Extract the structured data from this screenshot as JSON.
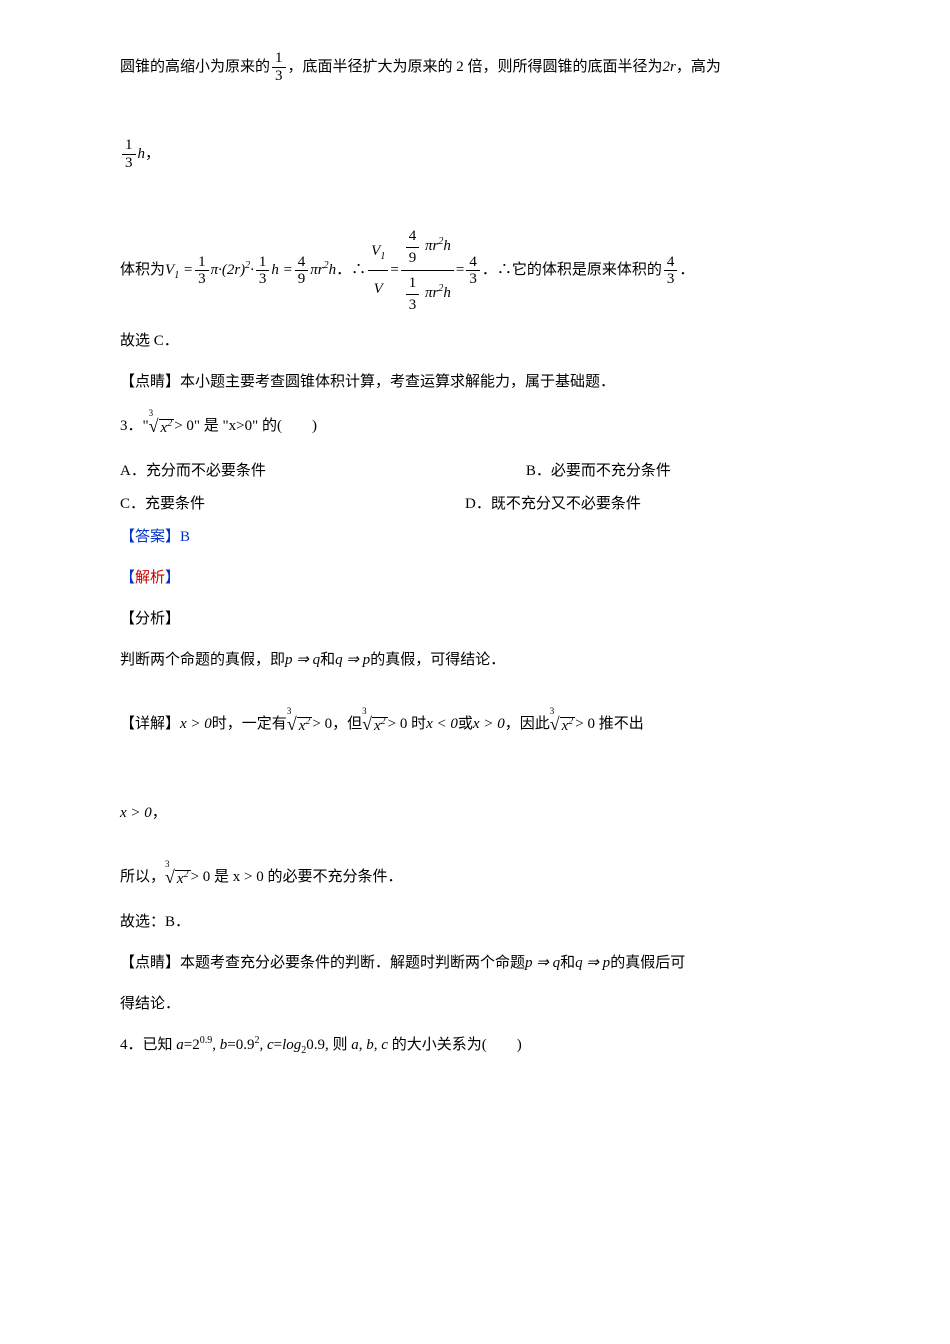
{
  "doc": {
    "line1_a": "圆锥的高缩小为原来的",
    "line1_frac_num": "1",
    "line1_frac_den": "3",
    "line1_b": "，底面半径扩大为原来的 2 倍，则所得圆锥的底面半径为",
    "line1_c": "2r",
    "line1_d": "，高为",
    "line2_frac_num": "1",
    "line2_frac_den": "3",
    "line2_h": "h",
    "line2_comma": "，",
    "line3_a": "体积为",
    "line3_math1": "V₁ = ",
    "line3_f1_num": "1",
    "line3_f1_den": "3",
    "line3_math2": "π·(2r)²·",
    "line3_f2_num": "1",
    "line3_f2_den": "3",
    "line3_math3": "h =",
    "line3_f3_num": "4",
    "line3_f3_den": "9",
    "line3_math4": "πr²h",
    "line3_dot": "．∴",
    "line3_bigf1_num": "V₁",
    "line3_bigf1_den": "V",
    "line3_eq": " = ",
    "line3_bigf2_num_num": "4",
    "line3_bigf2_num_den": "9",
    "line3_bigf2_num_rest": "πr²h",
    "line3_bigf2_den_num": "1",
    "line3_bigf2_den_den": "3",
    "line3_bigf2_den_rest": "πr²h",
    "line3_eq2": " = ",
    "line3_f4_num": "4",
    "line3_f4_den": "3",
    "line3_end": "．∴它的体积是原来体积的",
    "line3_f5_num": "4",
    "line3_f5_den": "3",
    "line3_period": "．",
    "line4": "故选 C．",
    "line5": "【点睛】本小题主要考查圆锥体积计算，考查运算求解能力，属于基础题．",
    "q3_prefix": "3．\"",
    "q3_root_idx": "3",
    "q3_root_body": "x²",
    "q3_mid": " > 0\" 是 \"x>0\" 的(　　)",
    "q3_optA": "A．充分而不必要条件",
    "q3_optB": "B．必要而不充分条件",
    "q3_optC": "C．充要条件",
    "q3_optD": "D．既不充分又不必要条件",
    "q3_ans": "【答案】B",
    "q3_jiexi": "【解析】",
    "q3_fenxi": "【分析】",
    "q3_line_a": "判断两个命题的真假，即",
    "q3_pq1": "p ⇒ q",
    "q3_and": " 和 ",
    "q3_pq2": "q ⇒ p",
    "q3_line_b": " 的真假，可得结论．",
    "q3_detail_a": "【详解】",
    "q3_x1": "x > 0",
    "q3_detail_b": " 时，一定有 ",
    "q3_detail_c": " > 0，但 ",
    "q3_detail_d": " > 0 时 ",
    "q3_x2": "x < 0",
    "q3_or": " 或 ",
    "q3_x3": "x > 0",
    "q3_detail_e": "，因此 ",
    "q3_detail_f": " > 0 推不出",
    "q3_x4": "x > 0",
    "q3_comma": "，",
    "q3_so": "所以，",
    "q3_conc": " > 0 是 x > 0 的必要不充分条件．",
    "q3_gu": "故选：B．",
    "q3_dj_a": "【点睛】本题考查充分必要条件的判断．解题时判断两个命题 ",
    "q3_dj_b": " 的真假后可",
    "q3_dj_c": "得结论．",
    "q4": "4．已知 a=2⁰·⁹, b=0.9², c=log₂0.9, 则 a, b, c 的大小关系为(　　)"
  },
  "colors": {
    "text": "#000000",
    "blue": "#0033cc",
    "red": "#cc0000",
    "bg": "#ffffff"
  },
  "fonts": {
    "body_size": 15,
    "body_family": "SimSun"
  }
}
